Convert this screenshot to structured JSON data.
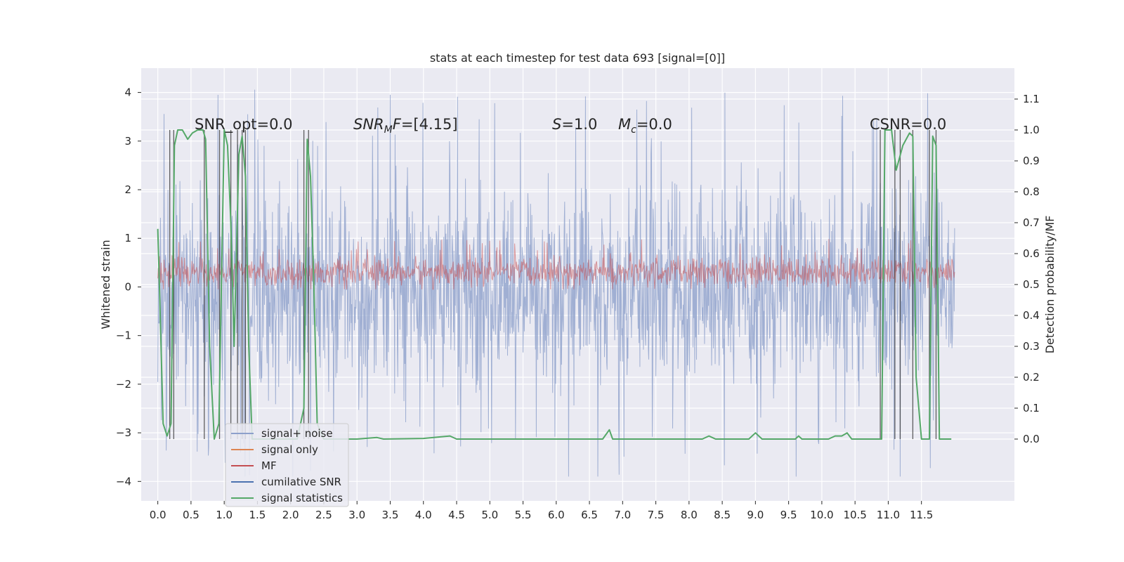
{
  "chart_data": {
    "type": "line",
    "title": "stats at each timestep for test data 693 [signal=[0]]",
    "xlabel": "",
    "ylabel_left": "Whitened strain",
    "ylabel_right": "Detection probability/MF",
    "xlim": [
      -0.25,
      12.9
    ],
    "ylim_left": [
      -4.4,
      4.5
    ],
    "ylim_right": [
      -0.2,
      1.2
    ],
    "grid": true,
    "xticks": [
      "0.0",
      "0.5",
      "1.0",
      "1.5",
      "2.0",
      "2.5",
      "3.0",
      "3.5",
      "4.0",
      "4.5",
      "5.0",
      "5.5",
      "6.0",
      "6.5",
      "7.0",
      "7.5",
      "8.0",
      "8.5",
      "9.0",
      "9.5",
      "10.0",
      "10.5",
      "11.0",
      "11.5"
    ],
    "xtick_values": [
      0,
      0.5,
      1,
      1.5,
      2,
      2.5,
      3,
      3.5,
      4,
      4.5,
      5,
      5.5,
      6,
      6.5,
      7,
      7.5,
      8,
      8.5,
      9,
      9.5,
      10,
      10.5,
      11,
      11.5
    ],
    "yticks_left": [
      "4",
      "3",
      "2",
      "1",
      "0",
      "−1",
      "−2",
      "−3",
      "−4"
    ],
    "ytick_values_left": [
      4,
      3,
      2,
      1,
      0,
      -1,
      -2,
      -3,
      -4
    ],
    "yticks_right": [
      "1.1",
      "1.0",
      "0.9",
      "0.8",
      "0.7",
      "0.6",
      "0.5",
      "0.4",
      "0.3",
      "0.2",
      "0.1",
      "0.0"
    ],
    "ytick_values_right": [
      1.1,
      1.0,
      0.9,
      0.8,
      0.7,
      0.6,
      0.5,
      0.4,
      0.3,
      0.2,
      0.1,
      0.0
    ],
    "annotations": [
      {
        "text": "SNR_opt=0.0",
        "x": 0.2,
        "y": 3.25
      },
      {
        "text": "SNR_MF=[4.15]",
        "x": 2.6,
        "y": 3.25
      },
      {
        "text": "S=1.0",
        "x": 5.6,
        "y": 3.25
      },
      {
        "text": "M_c=0.0",
        "x": 6.6,
        "y": 3.25
      },
      {
        "text": "CSNR=0.0",
        "x": 10.4,
        "y": 3.25
      }
    ],
    "legend": {
      "placement": "lower-left",
      "entries": [
        {
          "label": "signal+ noise",
          "color": "#8da0cb"
        },
        {
          "label": "signal only",
          "color": "#dd8452"
        },
        {
          "label": "MF",
          "color": "#c44e52"
        },
        {
          "label": "cumilative SNR",
          "color": "#4c72b0"
        },
        {
          "label": "signal statistics",
          "color": "#55a868"
        }
      ]
    },
    "noise_envelope": {
      "x_range": [
        0.0,
        12.0
      ],
      "max_amplitude": 4.1,
      "min_amplitude": -3.9,
      "typical_upper": 2.0,
      "typical_lower": -2.0,
      "color": "#8da0cb"
    },
    "mf_band": {
      "x_range": [
        0.0,
        12.0
      ],
      "typical_low": 0.0,
      "typical_high": 0.7,
      "color": "#c44e52"
    },
    "signal_statistics": {
      "axis": "right",
      "color": "#55a868",
      "points": [
        [
          0.0,
          0.68
        ],
        [
          0.03,
          0.45
        ],
        [
          0.08,
          0.05
        ],
        [
          0.14,
          0.01
        ],
        [
          0.2,
          0.05
        ],
        [
          0.25,
          0.95
        ],
        [
          0.3,
          1.0
        ],
        [
          0.37,
          1.0
        ],
        [
          0.45,
          0.97
        ],
        [
          0.52,
          0.99
        ],
        [
          0.6,
          1.0
        ],
        [
          0.68,
          1.0
        ],
        [
          0.72,
          0.97
        ],
        [
          0.78,
          0.3
        ],
        [
          0.85,
          0.0
        ],
        [
          0.92,
          0.05
        ],
        [
          1.0,
          1.0
        ],
        [
          1.05,
          0.95
        ],
        [
          1.1,
          0.7
        ],
        [
          1.15,
          0.3
        ],
        [
          1.22,
          0.92
        ],
        [
          1.27,
          0.98
        ],
        [
          1.32,
          0.85
        ],
        [
          1.37,
          0.3
        ],
        [
          1.42,
          0.0
        ],
        [
          1.5,
          0.0
        ],
        [
          2.1,
          0.0
        ],
        [
          2.2,
          0.1
        ],
        [
          2.25,
          0.97
        ],
        [
          2.3,
          0.85
        ],
        [
          2.35,
          0.5
        ],
        [
          2.4,
          0.05
        ],
        [
          2.5,
          0.0
        ],
        [
          3.0,
          0.0
        ],
        [
          3.3,
          0.005
        ],
        [
          3.4,
          0.0
        ],
        [
          4.0,
          0.002
        ],
        [
          4.4,
          0.01
        ],
        [
          4.5,
          0.0
        ],
        [
          6.7,
          0.0
        ],
        [
          6.8,
          0.03
        ],
        [
          6.85,
          0.0
        ],
        [
          8.2,
          0.0
        ],
        [
          8.3,
          0.01
        ],
        [
          8.4,
          0.0
        ],
        [
          8.9,
          0.0
        ],
        [
          9.0,
          0.02
        ],
        [
          9.1,
          0.0
        ],
        [
          9.6,
          0.0
        ],
        [
          9.65,
          0.01
        ],
        [
          9.7,
          0.0
        ],
        [
          10.1,
          0.0
        ],
        [
          10.2,
          0.01
        ],
        [
          10.3,
          0.01
        ],
        [
          10.38,
          0.02
        ],
        [
          10.45,
          0.0
        ],
        [
          10.9,
          0.0
        ],
        [
          10.95,
          1.0
        ],
        [
          11.05,
          1.0
        ],
        [
          11.12,
          0.87
        ],
        [
          11.22,
          0.95
        ],
        [
          11.32,
          0.99
        ],
        [
          11.37,
          0.98
        ],
        [
          11.42,
          0.2
        ],
        [
          11.5,
          0.0
        ],
        [
          11.62,
          0.0
        ],
        [
          11.67,
          0.98
        ],
        [
          11.72,
          0.95
        ],
        [
          11.77,
          0.0
        ],
        [
          11.85,
          0.0
        ],
        [
          11.95,
          0.0
        ]
      ]
    },
    "detection_markers": {
      "color": "#3a3a3a",
      "x": [
        0.18,
        0.24,
        0.7,
        0.93,
        1.1,
        1.2,
        1.27,
        1.32,
        2.2,
        2.27,
        10.88,
        11.1,
        11.18,
        11.37,
        11.62,
        11.72
      ]
    }
  }
}
